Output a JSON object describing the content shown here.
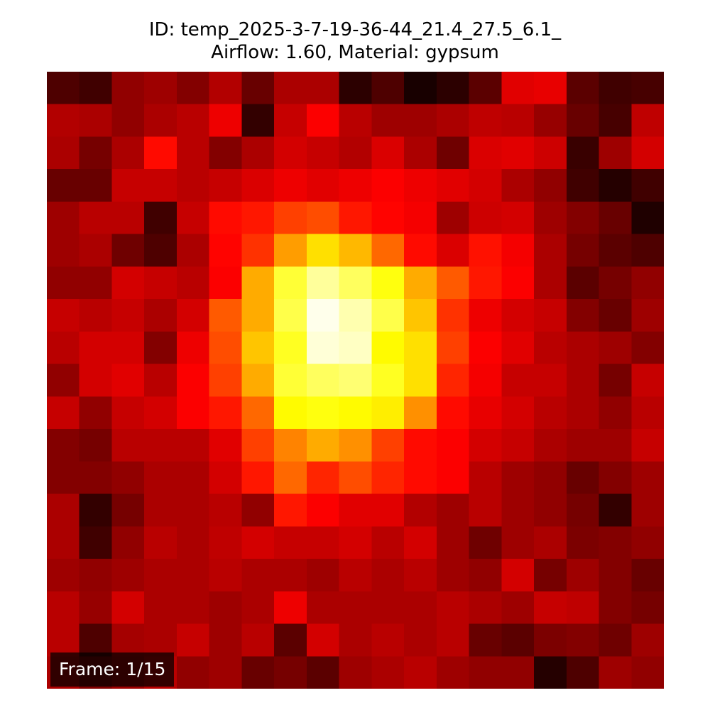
{
  "chart_data": {
    "type": "heatmap",
    "title": "ID: temp_2025-3-7-19-36-44_21.4_27.5_6.1_",
    "subtitle": "Airflow: 1.60, Material: gypsum",
    "frame_label": "Frame: 1/15",
    "colormap": "hot",
    "value_range": [
      0,
      1
    ],
    "rows": 19,
    "cols": 19,
    "values": [
      [
        0.1,
        0.08,
        0.2,
        0.22,
        0.18,
        0.25,
        0.14,
        0.24,
        0.24,
        0.05,
        0.1,
        0.02,
        0.05,
        0.12,
        0.32,
        0.33,
        0.12,
        0.08,
        0.09
      ],
      [
        0.25,
        0.24,
        0.2,
        0.24,
        0.26,
        0.34,
        0.06,
        0.28,
        0.36,
        0.26,
        0.22,
        0.22,
        0.24,
        0.27,
        0.26,
        0.21,
        0.14,
        0.09,
        0.27
      ],
      [
        0.24,
        0.16,
        0.24,
        0.38,
        0.26,
        0.18,
        0.24,
        0.3,
        0.28,
        0.25,
        0.31,
        0.24,
        0.15,
        0.31,
        0.32,
        0.29,
        0.07,
        0.22,
        0.3
      ],
      [
        0.14,
        0.14,
        0.28,
        0.28,
        0.26,
        0.28,
        0.31,
        0.34,
        0.32,
        0.34,
        0.36,
        0.34,
        0.32,
        0.3,
        0.24,
        0.2,
        0.08,
        0.04,
        0.08
      ],
      [
        0.22,
        0.26,
        0.26,
        0.08,
        0.28,
        0.38,
        0.4,
        0.46,
        0.48,
        0.4,
        0.37,
        0.35,
        0.22,
        0.29,
        0.3,
        0.22,
        0.18,
        0.14,
        0.03
      ],
      [
        0.22,
        0.24,
        0.15,
        0.1,
        0.24,
        0.37,
        0.44,
        0.6,
        0.7,
        0.64,
        0.52,
        0.38,
        0.31,
        0.39,
        0.35,
        0.24,
        0.16,
        0.12,
        0.1
      ],
      [
        0.2,
        0.2,
        0.3,
        0.28,
        0.26,
        0.36,
        0.62,
        0.8,
        0.9,
        0.84,
        0.76,
        0.62,
        0.5,
        0.4,
        0.36,
        0.24,
        0.12,
        0.16,
        0.2
      ],
      [
        0.28,
        0.26,
        0.28,
        0.24,
        0.3,
        0.5,
        0.62,
        0.82,
        0.98,
        0.92,
        0.82,
        0.66,
        0.44,
        0.34,
        0.3,
        0.28,
        0.18,
        0.14,
        0.22
      ],
      [
        0.26,
        0.3,
        0.3,
        0.18,
        0.34,
        0.48,
        0.66,
        0.78,
        0.96,
        0.94,
        0.74,
        0.7,
        0.46,
        0.36,
        0.32,
        0.26,
        0.24,
        0.22,
        0.18
      ],
      [
        0.2,
        0.3,
        0.32,
        0.26,
        0.36,
        0.46,
        0.62,
        0.8,
        0.84,
        0.86,
        0.78,
        0.7,
        0.42,
        0.35,
        0.28,
        0.28,
        0.24,
        0.16,
        0.28
      ],
      [
        0.28,
        0.2,
        0.28,
        0.3,
        0.36,
        0.4,
        0.52,
        0.74,
        0.76,
        0.74,
        0.72,
        0.58,
        0.38,
        0.33,
        0.3,
        0.26,
        0.24,
        0.2,
        0.26
      ],
      [
        0.18,
        0.16,
        0.26,
        0.26,
        0.26,
        0.32,
        0.46,
        0.56,
        0.62,
        0.58,
        0.46,
        0.38,
        0.36,
        0.3,
        0.28,
        0.24,
        0.22,
        0.22,
        0.28
      ],
      [
        0.18,
        0.18,
        0.2,
        0.24,
        0.24,
        0.3,
        0.4,
        0.52,
        0.42,
        0.48,
        0.42,
        0.38,
        0.36,
        0.26,
        0.22,
        0.2,
        0.14,
        0.18,
        0.22
      ],
      [
        0.24,
        0.06,
        0.16,
        0.24,
        0.24,
        0.26,
        0.2,
        0.4,
        0.36,
        0.32,
        0.32,
        0.25,
        0.22,
        0.26,
        0.22,
        0.2,
        0.16,
        0.06,
        0.22
      ],
      [
        0.24,
        0.08,
        0.2,
        0.26,
        0.24,
        0.27,
        0.3,
        0.28,
        0.28,
        0.3,
        0.26,
        0.3,
        0.22,
        0.15,
        0.22,
        0.24,
        0.17,
        0.18,
        0.2
      ],
      [
        0.22,
        0.2,
        0.22,
        0.24,
        0.24,
        0.26,
        0.24,
        0.24,
        0.22,
        0.26,
        0.24,
        0.26,
        0.22,
        0.2,
        0.3,
        0.16,
        0.22,
        0.18,
        0.14
      ],
      [
        0.26,
        0.21,
        0.3,
        0.24,
        0.24,
        0.22,
        0.24,
        0.34,
        0.24,
        0.24,
        0.24,
        0.24,
        0.26,
        0.24,
        0.22,
        0.28,
        0.27,
        0.18,
        0.16
      ],
      [
        0.26,
        0.1,
        0.23,
        0.24,
        0.28,
        0.22,
        0.26,
        0.12,
        0.3,
        0.24,
        0.26,
        0.24,
        0.26,
        0.14,
        0.12,
        0.17,
        0.18,
        0.15,
        0.22
      ],
      [
        0.24,
        0.18,
        0.22,
        0.26,
        0.2,
        0.22,
        0.14,
        0.16,
        0.12,
        0.22,
        0.24,
        0.26,
        0.22,
        0.2,
        0.2,
        0.04,
        0.1,
        0.22,
        0.2
      ]
    ]
  }
}
